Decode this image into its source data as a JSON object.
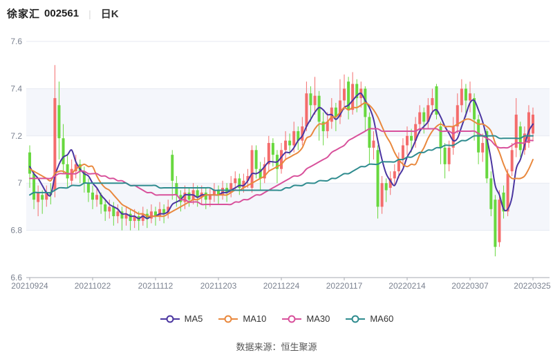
{
  "header": {
    "stock_name": "徐家汇",
    "stock_code": "002561",
    "divider": "|",
    "period_label": "日K"
  },
  "footer": {
    "source_text": "数据来源：恒生聚源"
  },
  "chart_data": {
    "type": "candlestick",
    "title": "徐家汇 002561 日K",
    "y_axis": {
      "min": 6.6,
      "max": 7.6,
      "tick_values": [
        7.6,
        7.4,
        7.2,
        7.0,
        6.8,
        6.6
      ],
      "tick_labels": [
        "7.6",
        "7.4",
        "7.2",
        "7",
        "6.8",
        "6.6"
      ]
    },
    "x_axis": {
      "tick_labels": [
        "20210924",
        "20211022",
        "20211112",
        "20211203",
        "20211224",
        "20220117",
        "20220214",
        "20220307",
        "20220325"
      ],
      "tick_indices": [
        0,
        15,
        30,
        45,
        60,
        75,
        90,
        105,
        120
      ]
    },
    "candle_format": [
      "open",
      "close",
      "low",
      "high"
    ],
    "up_color": "#f46c6c",
    "down_color": "#68d83f",
    "candles": [
      [
        7.13,
        7.04,
        6.98,
        7.16
      ],
      [
        7.04,
        6.93,
        6.89,
        7.05
      ],
      [
        6.92,
        6.96,
        6.86,
        6.99
      ],
      [
        6.95,
        6.93,
        6.87,
        6.97
      ],
      [
        6.93,
        6.96,
        6.9,
        6.99
      ],
      [
        6.96,
        6.95,
        6.91,
        7.0
      ],
      [
        6.97,
        7.36,
        6.94,
        7.5
      ],
      [
        7.33,
        7.19,
        7.1,
        7.43
      ],
      [
        7.19,
        7.08,
        7.04,
        7.25
      ],
      [
        7.08,
        7.02,
        6.98,
        7.12
      ],
      [
        7.01,
        7.06,
        6.99,
        7.1
      ],
      [
        7.05,
        7.08,
        7.02,
        7.12
      ],
      [
        7.08,
        7.05,
        7.0,
        7.1
      ],
      [
        7.05,
        7.0,
        6.96,
        7.07
      ],
      [
        7.0,
        6.96,
        6.92,
        7.02
      ],
      [
        6.96,
        6.93,
        6.89,
        6.99
      ],
      [
        6.93,
        6.95,
        6.9,
        6.98
      ],
      [
        6.95,
        6.91,
        6.87,
        6.96
      ],
      [
        6.91,
        6.88,
        6.84,
        6.93
      ],
      [
        6.88,
        6.9,
        6.85,
        6.93
      ],
      [
        6.9,
        6.86,
        6.82,
        6.92
      ],
      [
        6.86,
        6.88,
        6.83,
        6.91
      ],
      [
        6.88,
        6.85,
        6.8,
        6.9
      ],
      [
        6.85,
        6.87,
        6.82,
        6.9
      ],
      [
        6.87,
        6.84,
        6.8,
        6.89
      ],
      [
        6.84,
        6.86,
        6.81,
        6.89
      ],
      [
        6.86,
        6.84,
        6.8,
        6.88
      ],
      [
        6.84,
        6.87,
        6.82,
        6.9
      ],
      [
        6.87,
        6.85,
        6.81,
        6.89
      ],
      [
        6.85,
        6.88,
        6.83,
        6.91
      ],
      [
        6.88,
        6.86,
        6.82,
        6.9
      ],
      [
        6.86,
        6.89,
        6.84,
        6.92
      ],
      [
        6.89,
        6.87,
        6.83,
        6.91
      ],
      [
        6.87,
        6.9,
        6.85,
        6.93
      ],
      [
        7.12,
        7.01,
        6.93,
        7.14
      ],
      [
        7.0,
        6.95,
        6.9,
        7.03
      ],
      [
        6.95,
        6.92,
        6.88,
        6.97
      ],
      [
        6.92,
        6.96,
        6.89,
        6.99
      ],
      [
        6.96,
        6.93,
        6.9,
        6.98
      ],
      [
        6.93,
        6.97,
        6.91,
        7.0
      ],
      [
        6.97,
        6.94,
        6.9,
        6.99
      ],
      [
        6.94,
        6.96,
        6.91,
        6.99
      ],
      [
        6.96,
        6.93,
        6.89,
        6.98
      ],
      [
        6.93,
        6.95,
        6.9,
        6.98
      ],
      [
        6.95,
        6.97,
        6.92,
        7.0
      ],
      [
        6.97,
        6.95,
        6.91,
        6.99
      ],
      [
        6.95,
        6.98,
        6.93,
        7.01
      ],
      [
        6.98,
        6.96,
        6.92,
        7.0
      ],
      [
        6.96,
        7.0,
        6.94,
        7.03
      ],
      [
        7.0,
        7.02,
        6.97,
        7.05
      ],
      [
        7.02,
        6.98,
        6.95,
        7.04
      ],
      [
        6.98,
        7.01,
        6.96,
        7.04
      ],
      [
        7.01,
        7.03,
        6.98,
        7.06
      ],
      [
        6.98,
        7.14,
        6.96,
        7.16
      ],
      [
        7.14,
        7.06,
        7.02,
        7.16
      ],
      [
        7.06,
        7.02,
        6.97,
        7.09
      ],
      [
        7.02,
        7.08,
        7.0,
        7.11
      ],
      [
        7.08,
        7.17,
        7.05,
        7.2
      ],
      [
        7.17,
        7.12,
        7.07,
        7.19
      ],
      [
        7.12,
        7.06,
        7.0,
        7.14
      ],
      [
        7.06,
        7.14,
        7.04,
        7.17
      ],
      [
        7.14,
        7.18,
        7.1,
        7.22
      ],
      [
        7.18,
        7.16,
        7.12,
        7.21
      ],
      [
        7.16,
        7.22,
        7.13,
        7.26
      ],
      [
        7.22,
        7.18,
        7.14,
        7.24
      ],
      [
        7.18,
        7.24,
        7.16,
        7.28
      ],
      [
        7.24,
        7.38,
        7.22,
        7.43
      ],
      [
        7.38,
        7.33,
        7.26,
        7.41
      ],
      [
        7.33,
        7.37,
        7.29,
        7.45
      ],
      [
        7.37,
        7.26,
        7.18,
        7.39
      ],
      [
        7.26,
        7.22,
        7.16,
        7.3
      ],
      [
        7.22,
        7.26,
        7.19,
        7.3
      ],
      [
        7.26,
        7.32,
        7.23,
        7.36
      ],
      [
        7.32,
        7.28,
        7.22,
        7.34
      ],
      [
        7.28,
        7.35,
        7.25,
        7.44
      ],
      [
        7.35,
        7.4,
        7.31,
        7.46
      ],
      [
        7.43,
        7.31,
        7.27,
        7.45
      ],
      [
        7.31,
        7.42,
        7.29,
        7.47
      ],
      [
        7.42,
        7.36,
        7.3,
        7.44
      ],
      [
        7.36,
        7.4,
        7.32,
        7.43
      ],
      [
        7.4,
        7.28,
        7.22,
        7.41
      ],
      [
        7.28,
        7.15,
        7.08,
        7.3
      ],
      [
        7.15,
        7.18,
        7.1,
        7.22
      ],
      [
        7.14,
        6.9,
        6.85,
        7.16
      ],
      [
        6.9,
        7.0,
        6.87,
        7.03
      ],
      [
        7.0,
        6.97,
        6.92,
        7.02
      ],
      [
        6.98,
        7.02,
        6.95,
        7.05
      ],
      [
        7.02,
        7.05,
        6.99,
        7.08
      ],
      [
        7.05,
        7.1,
        7.02,
        7.13
      ],
      [
        7.1,
        7.16,
        7.07,
        7.19
      ],
      [
        7.16,
        7.2,
        7.12,
        7.24
      ],
      [
        7.2,
        7.18,
        7.13,
        7.23
      ],
      [
        7.18,
        7.25,
        7.15,
        7.28
      ],
      [
        7.25,
        7.3,
        7.21,
        7.33
      ],
      [
        7.3,
        7.26,
        7.21,
        7.32
      ],
      [
        7.26,
        7.33,
        7.23,
        7.36
      ],
      [
        7.33,
        7.36,
        7.29,
        7.4
      ],
      [
        7.41,
        7.29,
        7.27,
        7.42
      ],
      [
        7.24,
        7.15,
        7.08,
        7.26
      ],
      [
        7.15,
        7.08,
        7.02,
        7.17
      ],
      [
        7.08,
        7.15,
        7.05,
        7.18
      ],
      [
        7.15,
        7.24,
        7.12,
        7.28
      ],
      [
        7.24,
        7.33,
        7.21,
        7.38
      ],
      [
        7.33,
        7.4,
        7.3,
        7.44
      ],
      [
        7.4,
        7.35,
        7.28,
        7.42
      ],
      [
        7.35,
        7.38,
        7.3,
        7.43
      ],
      [
        7.36,
        7.27,
        7.18,
        7.38
      ],
      [
        7.27,
        7.13,
        7.08,
        7.29
      ],
      [
        7.13,
        7.17,
        7.09,
        7.21
      ],
      [
        7.22,
        7.02,
        7.0,
        7.23
      ],
      [
        7.02,
        6.89,
        6.86,
        7.05
      ],
      [
        6.93,
        6.73,
        6.69,
        6.95
      ],
      [
        6.75,
        6.93,
        6.73,
        6.97
      ],
      [
        6.96,
        6.88,
        6.85,
        6.99
      ],
      [
        6.88,
        7.04,
        6.86,
        7.06
      ],
      [
        7.05,
        7.14,
        7.03,
        7.17
      ],
      [
        7.15,
        7.29,
        7.11,
        7.36
      ],
      [
        7.24,
        7.14,
        7.11,
        7.26
      ],
      [
        7.14,
        7.21,
        7.12,
        7.24
      ],
      [
        7.17,
        7.3,
        7.15,
        7.33
      ],
      [
        7.21,
        7.29,
        7.18,
        7.32
      ]
    ],
    "moving_averages": [
      {
        "name": "MA5",
        "window": 5,
        "color": "#4a35a0"
      },
      {
        "name": "MA10",
        "window": 10,
        "color": "#e9883d"
      },
      {
        "name": "MA30",
        "window": 30,
        "color": "#d8509b"
      },
      {
        "name": "MA60",
        "window": 60,
        "color": "#2e8b8e"
      }
    ],
    "ma_prehistory_ramp": {
      "from": 6.82,
      "to": 7.08,
      "count": 60
    },
    "style": {
      "band_fill": "#f4f6fb",
      "grid_line": "#e7eaf2",
      "axis_line": "#a6a9b1",
      "axis_label": "#7b8290"
    },
    "grid": true,
    "legend_position": "bottom"
  }
}
